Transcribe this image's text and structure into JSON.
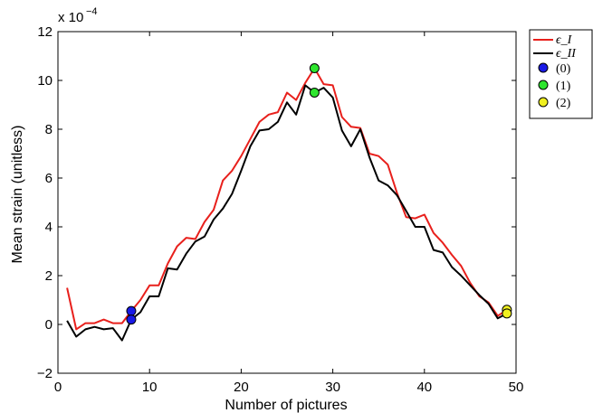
{
  "chart_data": {
    "type": "line",
    "xlabel": "Number of pictures",
    "ylabel": "Mean strain (unitless)",
    "y_multiplier_label": "x 10",
    "y_multiplier_exponent": "−4",
    "xlim": [
      0,
      50
    ],
    "ylim": [
      -2,
      12
    ],
    "xticks": [
      "0",
      "10",
      "20",
      "30",
      "40",
      "50"
    ],
    "yticks": [
      "−2",
      "0",
      "2",
      "4",
      "6",
      "8",
      "10",
      "12"
    ],
    "grid": false,
    "legend_position": "outside-top-right",
    "series": [
      {
        "name": "ϵ_I",
        "color": "#e8201c",
        "x": [
          1,
          2,
          3,
          4,
          5,
          6,
          7,
          8,
          9,
          10,
          11,
          12,
          13,
          14,
          15,
          16,
          17,
          18,
          19,
          20,
          21,
          22,
          23,
          24,
          25,
          26,
          27,
          28,
          29,
          30,
          31,
          32,
          33,
          34,
          35,
          36,
          37,
          38,
          39,
          40,
          41,
          42,
          43,
          44,
          45,
          46,
          47,
          48,
          49
        ],
        "y": [
          1.5,
          -0.2,
          0.05,
          0.05,
          0.2,
          0.05,
          0.05,
          0.55,
          1.0,
          1.6,
          1.6,
          2.5,
          3.2,
          3.55,
          3.5,
          4.2,
          4.7,
          5.9,
          6.3,
          6.9,
          7.6,
          8.3,
          8.6,
          8.7,
          9.5,
          9.2,
          9.9,
          10.5,
          9.85,
          9.8,
          8.5,
          8.1,
          8.05,
          7.0,
          6.9,
          6.55,
          5.4,
          4.4,
          4.35,
          4.5,
          3.75,
          3.35,
          2.85,
          2.4,
          1.7,
          1.15,
          0.9,
          0.35,
          0.6
        ]
      },
      {
        "name": "ϵ_II",
        "color": "#000000",
        "x": [
          1,
          2,
          3,
          4,
          5,
          6,
          7,
          8,
          9,
          10,
          11,
          12,
          13,
          14,
          15,
          16,
          17,
          18,
          19,
          20,
          21,
          22,
          23,
          24,
          25,
          26,
          27,
          28,
          29,
          30,
          31,
          32,
          33,
          34,
          35,
          36,
          37,
          38,
          39,
          40,
          41,
          42,
          43,
          44,
          45,
          46,
          47,
          48,
          49
        ],
        "y": [
          0.15,
          -0.5,
          -0.2,
          -0.1,
          -0.2,
          -0.15,
          -0.65,
          0.2,
          0.5,
          1.15,
          1.15,
          2.3,
          2.25,
          2.9,
          3.4,
          3.6,
          4.3,
          4.75,
          5.35,
          6.3,
          7.3,
          7.95,
          8.0,
          8.3,
          9.1,
          8.6,
          9.8,
          9.5,
          9.7,
          9.3,
          7.95,
          7.3,
          8.0,
          6.85,
          5.9,
          5.7,
          5.3,
          4.65,
          4.0,
          4.0,
          3.05,
          2.95,
          2.35,
          2.0,
          1.6,
          1.2,
          0.85,
          0.25,
          0.45
        ]
      }
    ],
    "markers": [
      {
        "name": "(0)",
        "color": "#1a1ae6",
        "points": [
          {
            "x": 8,
            "y": 0.55
          },
          {
            "x": 8,
            "y": 0.2
          }
        ]
      },
      {
        "name": "(1)",
        "color": "#2ee62e",
        "points": [
          {
            "x": 28,
            "y": 10.5
          },
          {
            "x": 28,
            "y": 9.5
          }
        ]
      },
      {
        "name": "(2)",
        "color": "#f0f020",
        "points": [
          {
            "x": 49,
            "y": 0.6
          },
          {
            "x": 49,
            "y": 0.45
          }
        ]
      }
    ]
  }
}
